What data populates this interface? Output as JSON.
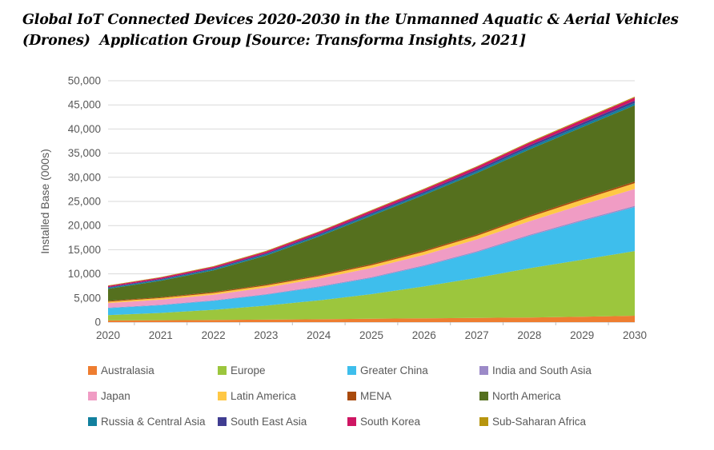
{
  "title": {
    "line1": "Global IoT Connected Devices 2020-2030 in the Unmanned Aquatic & Aerial Vehicles",
    "line2": "(Drones)  Application Group [Source: Transforma Insights, 2021]"
  },
  "chart_data": {
    "type": "area",
    "stacked": true,
    "title": "Global IoT Connected Devices 2020-2030 in the Unmanned Aquatic & Aerial Vehicles (Drones) Application Group [Source: Transforma Insights, 2021]",
    "xlabel": "",
    "ylabel": "Installed Base (000s)",
    "ylim": [
      0,
      50000
    ],
    "ytick_step": 5000,
    "grid": true,
    "legend_position": "bottom",
    "x": [
      2020,
      2021,
      2022,
      2023,
      2024,
      2025,
      2026,
      2027,
      2028,
      2029,
      2030
    ],
    "series": [
      {
        "name": "Australasia",
        "color": "#EE7D30",
        "values": [
          350,
          400,
          450,
          520,
          600,
          700,
          790,
          870,
          960,
          1120,
          1320
        ]
      },
      {
        "name": "Europe",
        "color": "#9CC63D",
        "values": [
          1100,
          1500,
          2100,
          2900,
          3900,
          5100,
          6600,
          8300,
          10200,
          11800,
          13400
        ]
      },
      {
        "name": "Greater China",
        "color": "#3EBEEC",
        "values": [
          1450,
          1600,
          1850,
          2250,
          2750,
          3350,
          4200,
          5300,
          6700,
          8000,
          9100
        ]
      },
      {
        "name": "India and South Asia",
        "color": "#9C8AC8",
        "values": [
          100,
          110,
          120,
          135,
          150,
          170,
          190,
          210,
          230,
          245,
          260
        ]
      },
      {
        "name": "Japan",
        "color": "#F09CC4",
        "values": [
          950,
          1050,
          1150,
          1350,
          1600,
          1900,
          2150,
          2450,
          2800,
          3150,
          3500
        ]
      },
      {
        "name": "Latin America",
        "color": "#FFC845",
        "values": [
          280,
          320,
          360,
          420,
          480,
          550,
          640,
          740,
          870,
          1020,
          1200
        ]
      },
      {
        "name": "MENA",
        "color": "#A94A0C",
        "values": [
          170,
          180,
          195,
          210,
          230,
          250,
          270,
          290,
          310,
          320,
          330
        ]
      },
      {
        "name": "North America",
        "color": "#55701E",
        "values": [
          2500,
          3400,
          4500,
          6000,
          8000,
          10000,
          11500,
          12700,
          13700,
          14700,
          15800
        ]
      },
      {
        "name": "Russia & Central Asia",
        "color": "#12809E",
        "values": [
          200,
          220,
          240,
          260,
          280,
          300,
          330,
          370,
          420,
          450,
          480
        ]
      },
      {
        "name": "South East Asia",
        "color": "#403D91",
        "values": [
          150,
          170,
          190,
          215,
          250,
          300,
          330,
          370,
          420,
          450,
          480
        ]
      },
      {
        "name": "South Korea",
        "color": "#CE1663",
        "values": [
          250,
          280,
          320,
          360,
          400,
          450,
          490,
          530,
          560,
          600,
          650
        ]
      },
      {
        "name": "Sub-Saharan Africa",
        "color": "#B7950E",
        "values": [
          100,
          110,
          120,
          130,
          140,
          150,
          155,
          160,
          170,
          175,
          180
        ]
      }
    ]
  },
  "style": {
    "axis_text_color": "#595959",
    "gridline_color": "#D9D9D9",
    "axis_line_color": "#BFBFBF"
  }
}
